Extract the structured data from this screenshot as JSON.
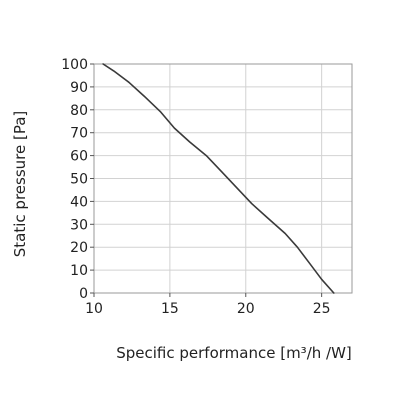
{
  "chart_data": {
    "type": "line",
    "title": "",
    "xlabel": "Specific performance [m³/h /W]",
    "ylabel": "Static pressure [Pa]",
    "xlim": [
      10,
      27
    ],
    "ylim": [
      0,
      100
    ],
    "x_ticks": [
      10,
      15,
      20,
      25
    ],
    "y_ticks": [
      0,
      10,
      20,
      30,
      40,
      50,
      60,
      70,
      80,
      90,
      100
    ],
    "grid": true,
    "legend": "none",
    "series": [
      {
        "color": "#3a3a3a",
        "x": [
          10.6,
          11.3,
          12.3,
          13.3,
          14.4,
          15.3,
          16.3,
          17.4,
          18.4,
          19.4,
          20.4,
          21.4,
          22.6,
          23.4,
          24.2,
          25.0,
          25.8
        ],
        "y": [
          100,
          97,
          92,
          86,
          79,
          72,
          66,
          60,
          53,
          46,
          39,
          33,
          26,
          20,
          13,
          6,
          0
        ]
      }
    ]
  }
}
